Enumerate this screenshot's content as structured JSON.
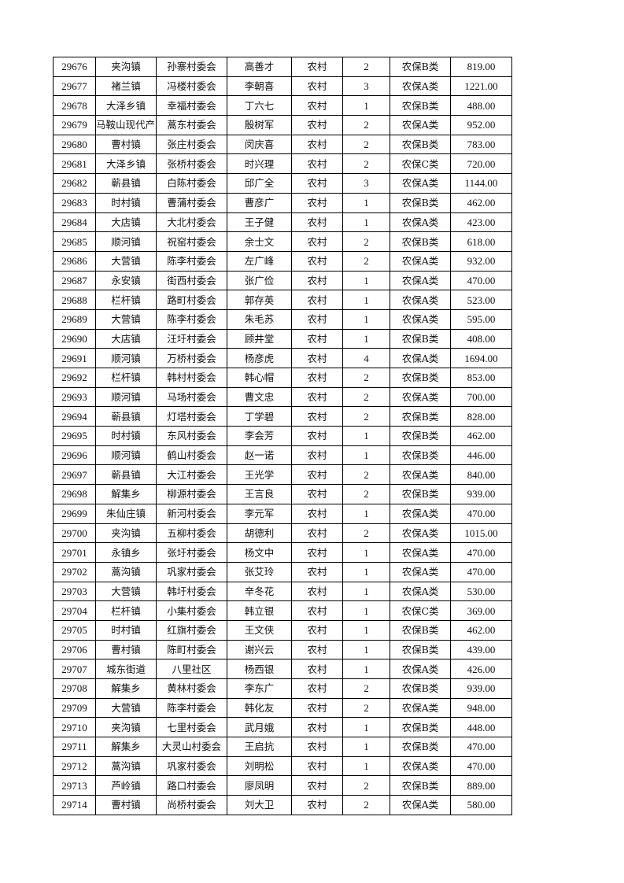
{
  "rows": [
    [
      "29676",
      "夹沟镇",
      "孙寨村委会",
      "高善才",
      "农村",
      "2",
      "农保B类",
      "819.00"
    ],
    [
      "29677",
      "褚兰镇",
      "冯楼村委会",
      "李朝喜",
      "农村",
      "3",
      "农保A类",
      "1221.00"
    ],
    [
      "29678",
      "大泽乡镇",
      "幸福村委会",
      "丁六七",
      "农村",
      "1",
      "农保B类",
      "488.00"
    ],
    [
      "29679",
      "马鞍山现代产业园区",
      "蒿东村委会",
      "殷树军",
      "农村",
      "2",
      "农保A类",
      "952.00"
    ],
    [
      "29680",
      "曹村镇",
      "张庄村委会",
      "闵庆喜",
      "农村",
      "2",
      "农保B类",
      "783.00"
    ],
    [
      "29681",
      "大泽乡镇",
      "张桥村委会",
      "时兴理",
      "农村",
      "2",
      "农保C类",
      "720.00"
    ],
    [
      "29682",
      "蕲县镇",
      "白陈村委会",
      "邱广全",
      "农村",
      "3",
      "农保A类",
      "1144.00"
    ],
    [
      "29683",
      "时村镇",
      "曹蒲村委会",
      "曹彦广",
      "农村",
      "1",
      "农保B类",
      "462.00"
    ],
    [
      "29684",
      "大店镇",
      "大北村委会",
      "王子健",
      "农村",
      "1",
      "农保A类",
      "423.00"
    ],
    [
      "29685",
      "顺河镇",
      "祝窑村委会",
      "余士文",
      "农村",
      "2",
      "农保B类",
      "618.00"
    ],
    [
      "29686",
      "大营镇",
      "陈李村委会",
      "左广峰",
      "农村",
      "2",
      "农保A类",
      "932.00"
    ],
    [
      "29687",
      "永安镇",
      "街西村委会",
      "张广俭",
      "农村",
      "1",
      "农保A类",
      "470.00"
    ],
    [
      "29688",
      "栏杆镇",
      "路町村委会",
      "郭存英",
      "农村",
      "1",
      "农保A类",
      "523.00"
    ],
    [
      "29689",
      "大营镇",
      "陈李村委会",
      "朱毛苏",
      "农村",
      "1",
      "农保A类",
      "595.00"
    ],
    [
      "29690",
      "大店镇",
      "汪圩村委会",
      "顾井堂",
      "农村",
      "1",
      "农保B类",
      "408.00"
    ],
    [
      "29691",
      "顺河镇",
      "万桥村委会",
      "杨彦虎",
      "农村",
      "4",
      "农保A类",
      "1694.00"
    ],
    [
      "29692",
      "栏杆镇",
      "韩村村委会",
      "韩心帽",
      "农村",
      "2",
      "农保B类",
      "853.00"
    ],
    [
      "29693",
      "顺河镇",
      "马场村委会",
      "曹文忠",
      "农村",
      "2",
      "农保A类",
      "700.00"
    ],
    [
      "29694",
      "蕲县镇",
      "灯塔村委会",
      "丁学碧",
      "农村",
      "2",
      "农保B类",
      "828.00"
    ],
    [
      "29695",
      "时村镇",
      "东风村委会",
      "李会芳",
      "农村",
      "1",
      "农保B类",
      "462.00"
    ],
    [
      "29696",
      "顺河镇",
      "鹤山村委会",
      "赵一诺",
      "农村",
      "1",
      "农保B类",
      "446.00"
    ],
    [
      "29697",
      "蕲县镇",
      "大江村委会",
      "王光学",
      "农村",
      "2",
      "农保A类",
      "840.00"
    ],
    [
      "29698",
      "解集乡",
      "柳源村委会",
      "王言良",
      "农村",
      "2",
      "农保B类",
      "939.00"
    ],
    [
      "29699",
      "朱仙庄镇",
      "新河村委会",
      "李元军",
      "农村",
      "1",
      "农保A类",
      "470.00"
    ],
    [
      "29700",
      "夹沟镇",
      "五柳村委会",
      "胡德利",
      "农村",
      "2",
      "农保A类",
      "1015.00"
    ],
    [
      "29701",
      "永镇乡",
      "张圩村委会",
      "杨文中",
      "农村",
      "1",
      "农保A类",
      "470.00"
    ],
    [
      "29702",
      "蒿沟镇",
      "巩家村委会",
      "张艾玲",
      "农村",
      "1",
      "农保A类",
      "470.00"
    ],
    [
      "29703",
      "大营镇",
      "韩圩村委会",
      "辛冬花",
      "农村",
      "1",
      "农保A类",
      "530.00"
    ],
    [
      "29704",
      "栏杆镇",
      "小集村委会",
      "韩立银",
      "农村",
      "1",
      "农保C类",
      "369.00"
    ],
    [
      "29705",
      "时村镇",
      "红旗村委会",
      "王文侠",
      "农村",
      "1",
      "农保B类",
      "462.00"
    ],
    [
      "29706",
      "曹村镇",
      "陈町村委会",
      "谢兴云",
      "农村",
      "1",
      "农保B类",
      "439.00"
    ],
    [
      "29707",
      "城东街道",
      "八里社区",
      "杨西银",
      "农村",
      "1",
      "农保A类",
      "426.00"
    ],
    [
      "29708",
      "解集乡",
      "黄林村委会",
      "李东广",
      "农村",
      "2",
      "农保B类",
      "939.00"
    ],
    [
      "29709",
      "大营镇",
      "陈李村委会",
      "韩化友",
      "农村",
      "2",
      "农保A类",
      "948.00"
    ],
    [
      "29710",
      "夹沟镇",
      "七里村委会",
      "武月娥",
      "农村",
      "1",
      "农保B类",
      "448.00"
    ],
    [
      "29711",
      "解集乡",
      "大灵山村委会",
      "王启抗",
      "农村",
      "1",
      "农保B类",
      "470.00"
    ],
    [
      "29712",
      "蒿沟镇",
      "巩家村委会",
      "刘明松",
      "农村",
      "1",
      "农保A类",
      "470.00"
    ],
    [
      "29713",
      "芦岭镇",
      "路口村委会",
      "廖凤明",
      "农村",
      "2",
      "农保B类",
      "889.00"
    ],
    [
      "29714",
      "曹村镇",
      "尚桥村委会",
      "刘大卫",
      "农村",
      "2",
      "农保A类",
      "580.00"
    ]
  ]
}
